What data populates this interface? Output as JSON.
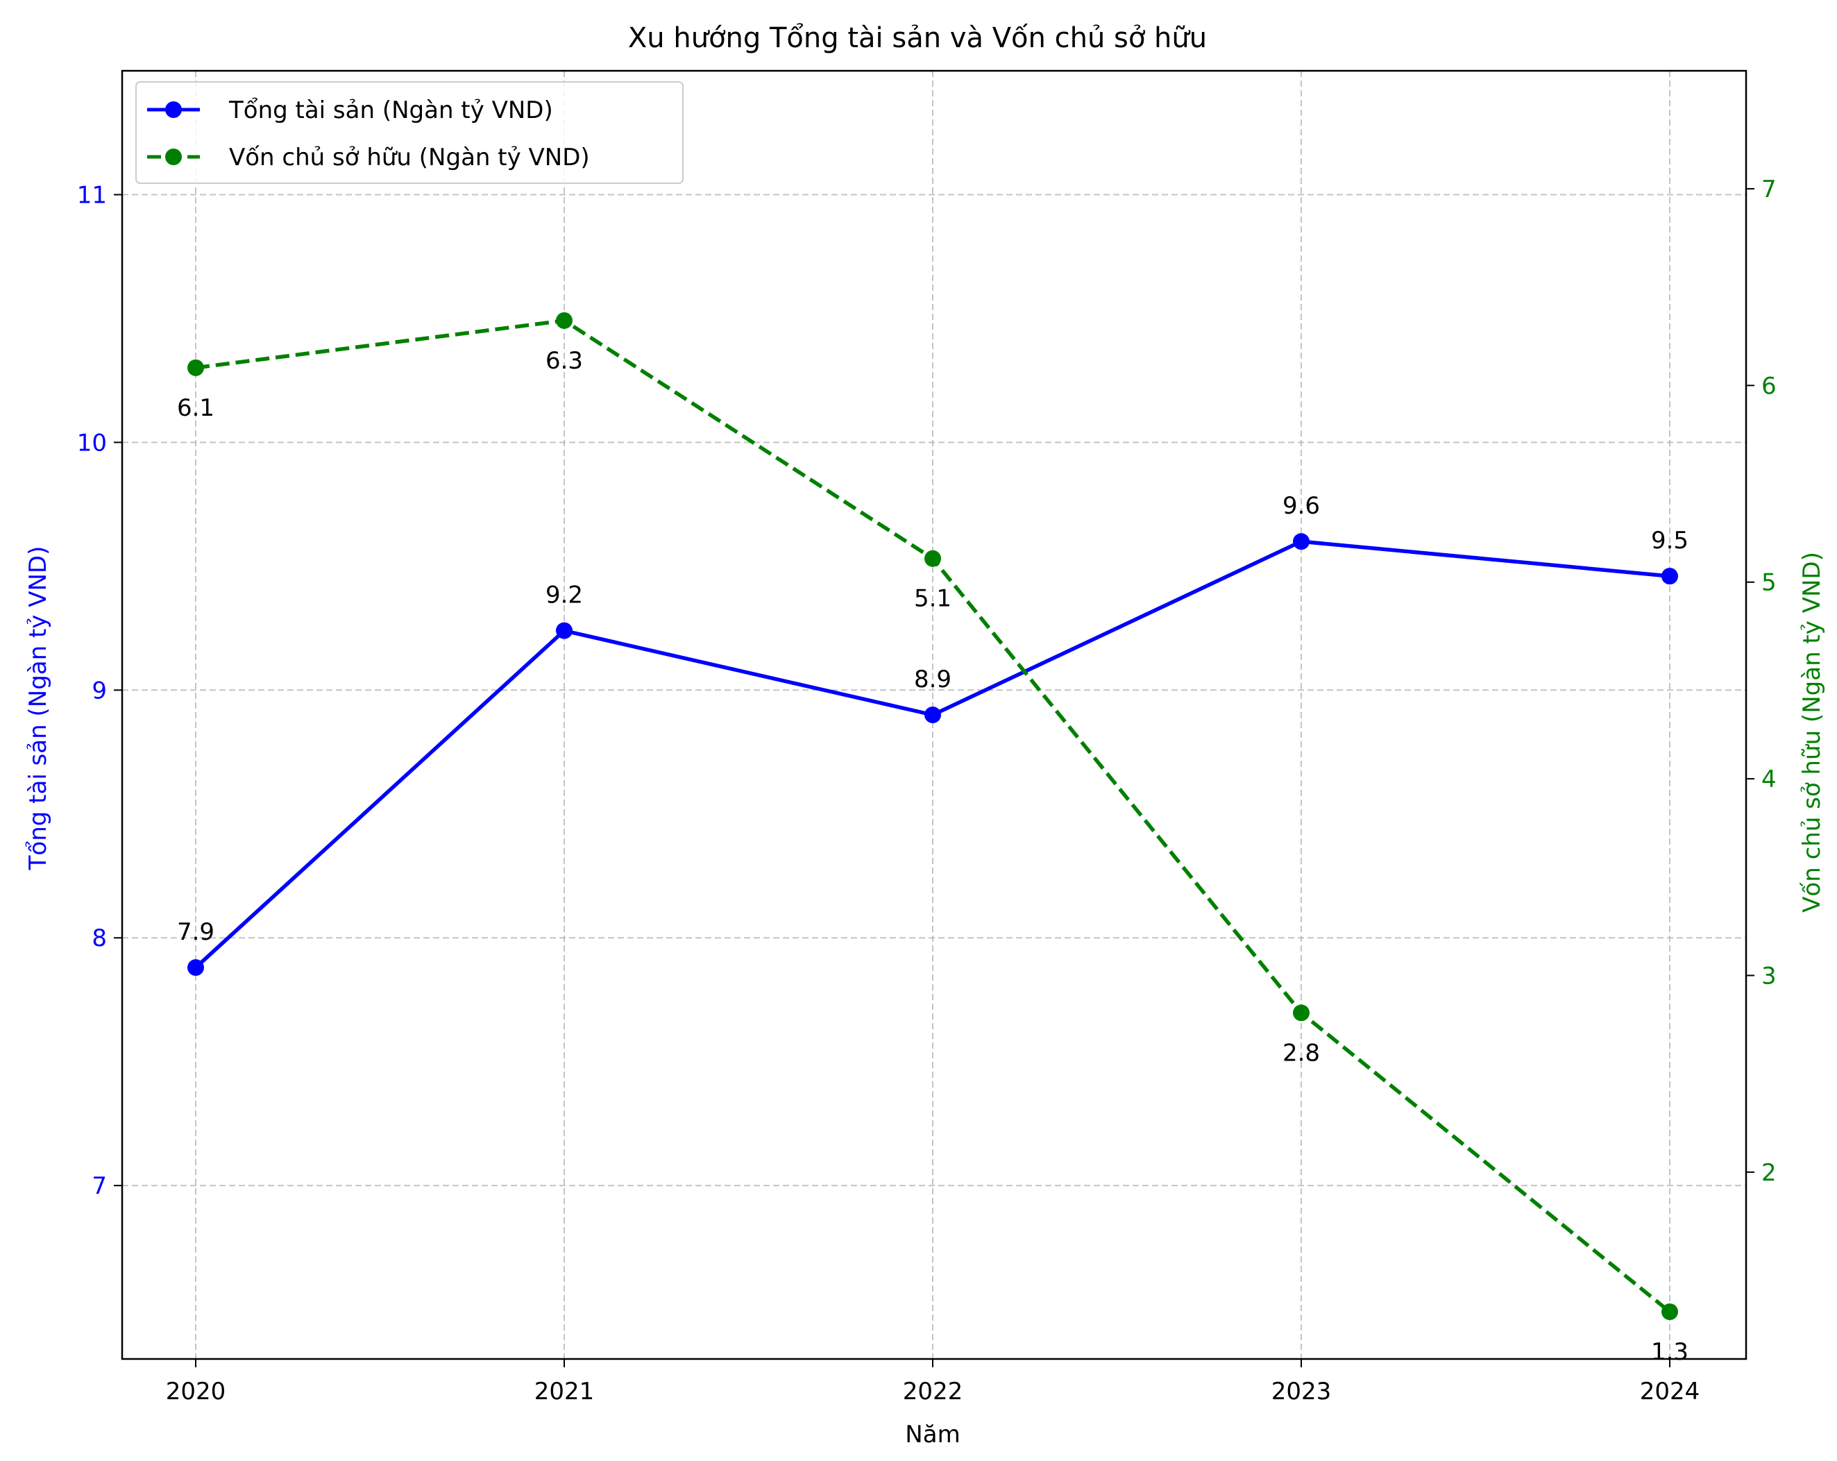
{
  "chart_data": {
    "type": "line",
    "title": "Xu hướng Tổng tài sản và Vốn chủ sở hữu",
    "xlabel": "Năm",
    "ylabel_left": "Tổng tài sản (Ngàn tỷ VND)",
    "ylabel_right": "Vốn chủ sở hữu (Ngàn tỷ VND)",
    "categories": [
      "2020",
      "2021",
      "2022",
      "2023",
      "2024"
    ],
    "y_left_ticks": [
      "7",
      "8",
      "9",
      "10",
      "11"
    ],
    "y_right_ticks": [
      "2",
      "3",
      "4",
      "5",
      "6",
      "7"
    ],
    "ylim_left": [
      6.3,
      11.5
    ],
    "ylim_right": [
      1.05,
      7.6
    ],
    "grid": true,
    "legend_position": "top-left",
    "series": [
      {
        "name": "Tổng tài sản (Ngàn tỷ VND)",
        "axis": "left",
        "color": "#0000ff",
        "line_style": "solid",
        "values": [
          7.88,
          9.24,
          8.9,
          9.6,
          9.46
        ],
        "labels": [
          "7.9",
          "9.2",
          "8.9",
          "9.6",
          "9.5"
        ]
      },
      {
        "name": "Vốn chủ sở hữu (Ngàn tỷ VND)",
        "axis": "right",
        "color": "#008000",
        "line_style": "dashed",
        "values": [
          6.09,
          6.33,
          5.12,
          2.81,
          1.29
        ],
        "labels": [
          "6.1",
          "6.3",
          "5.1",
          "2.8",
          "1.3"
        ]
      }
    ]
  }
}
